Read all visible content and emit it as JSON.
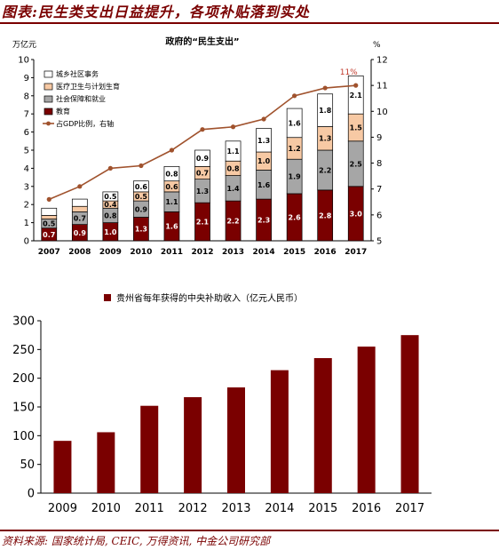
{
  "header": {
    "title": "图表:民生类支出日益提升，各项补贴落到实处"
  },
  "footer": {
    "source": "资料来源: 国家统计局, CEIC, 万得资讯, 中金公司研究部"
  },
  "chart_data": [
    {
      "type": "bar",
      "stacked": true,
      "title": "政府的“民生支出”",
      "ylabel_left": "万亿元",
      "ylabel_right": "%",
      "categories": [
        "2007",
        "2008",
        "2009",
        "2010",
        "2011",
        "2012",
        "2013",
        "2014",
        "2015",
        "2016",
        "2017"
      ],
      "ylim_left": [
        0,
        10
      ],
      "yticks_left": [
        "0",
        "1",
        "2",
        "3",
        "4",
        "5",
        "6",
        "7",
        "8",
        "9",
        "10"
      ],
      "ylim_right": [
        5,
        12
      ],
      "yticks_right": [
        "5",
        "6",
        "7",
        "8",
        "9",
        "10",
        "11",
        "12"
      ],
      "legend_position": "top-left",
      "series": [
        {
          "name": "教育",
          "color": "#7a0000",
          "values": [
            0.7,
            0.9,
            1.0,
            1.3,
            1.6,
            2.1,
            2.2,
            2.3,
            2.6,
            2.8,
            3.0
          ],
          "labels": [
            "0.7",
            "0.9",
            "1.0",
            "1.3",
            "1.6",
            "2.1",
            "2.2",
            "2.3",
            "2.6",
            "2.8",
            "3.0"
          ]
        },
        {
          "name": "社会保障和就业",
          "color": "#a6a6a6",
          "values": [
            0.5,
            0.7,
            0.8,
            0.9,
            1.1,
            1.3,
            1.4,
            1.6,
            1.9,
            2.2,
            2.5
          ],
          "labels": [
            "0.5",
            "0.7",
            "0.8",
            "0.9",
            "1.1",
            "1.3",
            "1.4",
            "1.6",
            "1.9",
            "2.2",
            "2.5"
          ]
        },
        {
          "name": "医疗卫生与计划生育",
          "color": "#f7c9a4",
          "values": [
            0.2,
            0.3,
            0.4,
            0.5,
            0.6,
            0.7,
            0.8,
            1.0,
            1.2,
            1.3,
            1.5
          ],
          "labels": [
            "",
            "",
            "0.4",
            "0.5",
            "0.6",
            "0.7",
            "0.8",
            "1.0",
            "1.2",
            "1.3",
            "1.5"
          ]
        },
        {
          "name": "城乡社区事务",
          "color": "#ffffff",
          "values": [
            0.4,
            0.4,
            0.5,
            0.6,
            0.8,
            0.9,
            1.1,
            1.3,
            1.6,
            1.8,
            2.1
          ],
          "labels": [
            "",
            "",
            "0.5",
            "0.6",
            "0.8",
            "0.9",
            "1.1",
            "1.3",
            "1.6",
            "1.8",
            "2.1"
          ]
        }
      ],
      "line": {
        "name": "占GDP比例，右轴",
        "color": "#a0522d",
        "axis": "right",
        "values": [
          6.6,
          7.1,
          7.8,
          7.9,
          8.5,
          9.3,
          9.4,
          9.7,
          10.6,
          10.9,
          11.0
        ],
        "annotation": "11%"
      }
    },
    {
      "type": "bar",
      "title": "",
      "categories": [
        "2009",
        "2010",
        "2011",
        "2012",
        "2013",
        "2014",
        "2015",
        "2016",
        "2017"
      ],
      "series": [
        {
          "name": "贵州省每年获得的中央补助收入（亿元人民币）",
          "color": "#7a0000",
          "values": [
            91,
            106,
            152,
            167,
            184,
            214,
            235,
            255,
            275
          ]
        }
      ],
      "ylim": [
        0,
        300
      ],
      "yticks": [
        "0",
        "50",
        "100",
        "150",
        "200",
        "250",
        "300"
      ],
      "legend_position": "top"
    }
  ]
}
